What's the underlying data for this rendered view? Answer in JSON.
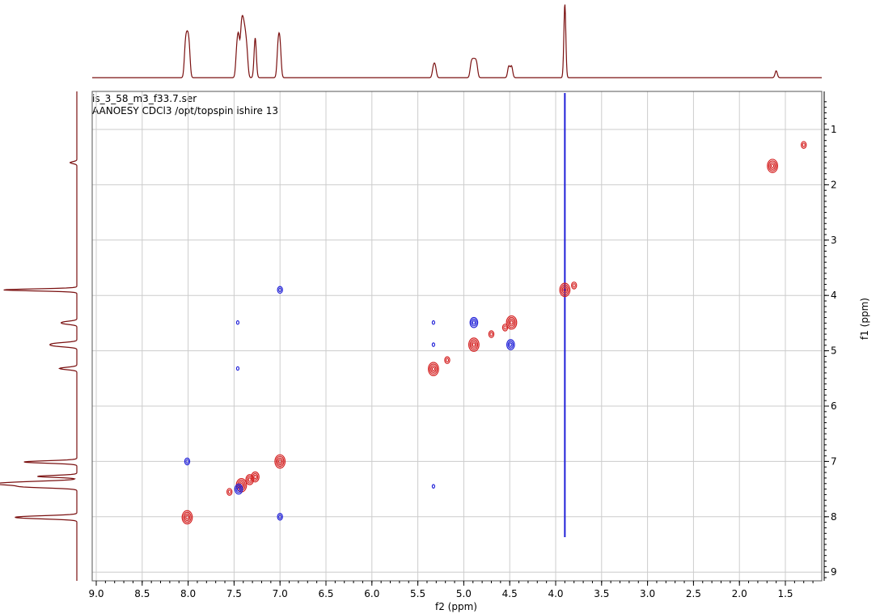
{
  "chart_data": {
    "type": "2d-nmr-contour",
    "title_lines": [
      "is_3_58_m3_f33.7.ser",
      "AANOESY CDCl3 /opt/topspin ishire 13"
    ],
    "xlabel": "f2 (ppm)",
    "ylabel": "f1 (ppm)",
    "xlim": [
      9.0,
      1.2
    ],
    "ylim": [
      0.4,
      9.2
    ],
    "x_axis_reversed": true,
    "y_axis_downward": true,
    "x_ticks": [
      "9.0",
      "8.5",
      "8.0",
      "7.5",
      "7.0",
      "6.5",
      "6.0",
      "5.5",
      "5.0",
      "4.5",
      "4.0",
      "3.5",
      "3.0",
      "2.5",
      "2.0",
      "1.5"
    ],
    "y_ticks": [
      "1",
      "2",
      "3",
      "4",
      "5",
      "6",
      "7",
      "8",
      "9"
    ],
    "grid": true,
    "colors": {
      "positive": "#d42020",
      "negative": "#2020d8",
      "projection": "#7a1010",
      "grid": "#cccccc"
    },
    "projection_peaks_ppm": [
      {
        "ppm": 8.03,
        "h": 0.52
      },
      {
        "ppm": 8.01,
        "h": 0.55
      },
      {
        "ppm": 7.99,
        "h": 0.52
      },
      {
        "ppm": 7.47,
        "h": 0.45
      },
      {
        "ppm": 7.45,
        "h": 0.62
      },
      {
        "ppm": 7.42,
        "h": 0.78
      },
      {
        "ppm": 7.4,
        "h": 0.7
      },
      {
        "ppm": 7.38,
        "h": 0.58
      },
      {
        "ppm": 7.36,
        "h": 0.4
      },
      {
        "ppm": 7.27,
        "h": 0.7
      },
      {
        "ppm": 7.02,
        "h": 0.55
      },
      {
        "ppm": 7.0,
        "h": 0.55
      },
      {
        "ppm": 5.33,
        "h": 0.18
      },
      {
        "ppm": 5.31,
        "h": 0.18
      },
      {
        "ppm": 4.92,
        "h": 0.22
      },
      {
        "ppm": 4.9,
        "h": 0.22
      },
      {
        "ppm": 4.88,
        "h": 0.22
      },
      {
        "ppm": 4.86,
        "h": 0.22
      },
      {
        "ppm": 4.51,
        "h": 0.2
      },
      {
        "ppm": 4.48,
        "h": 0.2
      },
      {
        "ppm": 3.9,
        "h": 1.3
      },
      {
        "ppm": 1.6,
        "h": 0.12
      }
    ],
    "cross_peaks": [
      {
        "f2": 1.64,
        "f1": 1.66,
        "sign": "positive",
        "size": 3
      },
      {
        "f2": 1.3,
        "f1": 1.28,
        "sign": "positive",
        "size": 1
      },
      {
        "f2": 3.9,
        "f1": 3.9,
        "sign": "positive",
        "size": 3
      },
      {
        "f2": 3.8,
        "f1": 3.82,
        "sign": "positive",
        "size": 1
      },
      {
        "f2": 4.48,
        "f1": 4.49,
        "sign": "positive",
        "size": 3
      },
      {
        "f2": 4.55,
        "f1": 4.58,
        "sign": "positive",
        "size": 1
      },
      {
        "f2": 4.7,
        "f1": 4.7,
        "sign": "positive",
        "size": 1
      },
      {
        "f2": 4.89,
        "f1": 4.89,
        "sign": "positive",
        "size": 3
      },
      {
        "f2": 5.18,
        "f1": 5.17,
        "sign": "positive",
        "size": 1
      },
      {
        "f2": 5.33,
        "f1": 5.33,
        "sign": "positive",
        "size": 3
      },
      {
        "f2": 7.0,
        "f1": 7.0,
        "sign": "positive",
        "size": 3
      },
      {
        "f2": 7.27,
        "f1": 7.28,
        "sign": "positive",
        "size": 2
      },
      {
        "f2": 7.33,
        "f1": 7.33,
        "sign": "positive",
        "size": 2
      },
      {
        "f2": 7.42,
        "f1": 7.43,
        "sign": "positive",
        "size": 3
      },
      {
        "f2": 7.55,
        "f1": 7.55,
        "sign": "positive",
        "size": 1
      },
      {
        "f2": 8.01,
        "f1": 8.01,
        "sign": "positive",
        "size": 3
      },
      {
        "f2": 7.0,
        "f1": 3.9,
        "sign": "negative",
        "size": 1
      },
      {
        "f2": 7.46,
        "f1": 4.49,
        "sign": "negative",
        "size": 0
      },
      {
        "f2": 7.46,
        "f1": 5.32,
        "sign": "negative",
        "size": 0
      },
      {
        "f2": 5.33,
        "f1": 4.49,
        "sign": "negative",
        "size": 0
      },
      {
        "f2": 5.33,
        "f1": 4.89,
        "sign": "negative",
        "size": 0
      },
      {
        "f2": 5.33,
        "f1": 7.45,
        "sign": "negative",
        "size": 0
      },
      {
        "f2": 4.89,
        "f1": 4.49,
        "sign": "negative",
        "size": 2
      },
      {
        "f2": 4.49,
        "f1": 4.89,
        "sign": "negative",
        "size": 2
      },
      {
        "f2": 8.01,
        "f1": 7.0,
        "sign": "negative",
        "size": 1
      },
      {
        "f2": 7.0,
        "f1": 8.0,
        "sign": "negative",
        "size": 1
      },
      {
        "f2": 7.45,
        "f1": 7.5,
        "sign": "negative",
        "size": 2
      }
    ],
    "t1_noise_f2_ppm": 3.9
  }
}
